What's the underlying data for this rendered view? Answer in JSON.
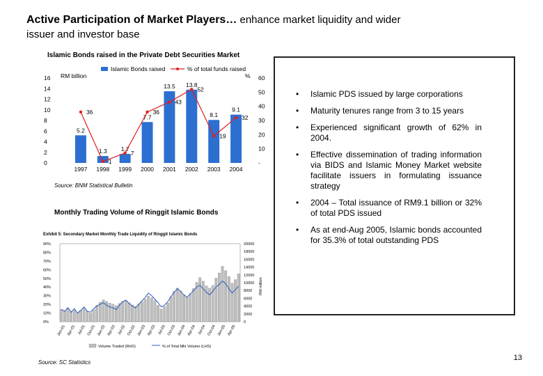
{
  "title": {
    "bold": "Active Participation of Market Players…",
    "normal_line1": " enhance market liquidity and wider",
    "normal_line2": "issuer and investor base"
  },
  "chart_data": [
    {
      "type": "bar",
      "title": "Islamic Bonds raised  in the Private Debt Securities Market",
      "legend": [
        "Islamic Bonds raised",
        "% of total funds raised"
      ],
      "left_axis_label": "RM billion",
      "right_axis_label": "%",
      "categories": [
        "1997",
        "1998",
        "1999",
        "2000",
        "2001",
        "2002",
        "2003",
        "2004"
      ],
      "bar_values": [
        5.2,
        1.3,
        1.7,
        7.7,
        13.5,
        13.8,
        8.1,
        9.1
      ],
      "line_values": [
        36,
        1,
        7,
        36,
        43,
        52,
        19,
        32
      ],
      "bar_labels": [
        "5.2",
        "1.3",
        "1.7",
        "7.7",
        "13.5",
        "13.8",
        "8.1",
        "9.1"
      ],
      "line_labels": [
        "36",
        "1",
        "7",
        "36",
        "43",
        "52",
        "19",
        "32"
      ],
      "left_ticks": [
        "0",
        "2",
        "4",
        "6",
        "8",
        "10",
        "12",
        "14",
        "16"
      ],
      "right_ticks": [
        "-",
        "10",
        "20",
        "30",
        "40",
        "50",
        "60"
      ],
      "left_ylim": [
        0,
        16
      ],
      "right_ylim": [
        0,
        60
      ],
      "colors": {
        "bar": "#2c6fd1",
        "line": "#e02020"
      },
      "source": "Source: BNM Statistical Bulletin"
    },
    {
      "type": "bar",
      "title": "Monthly Trading Volume of Ringgit Islamic Bonds",
      "subtitle": "Exhibit 5: Secondary Market Monthly Trade Liquidity of Ringgit Islamic Bonds",
      "left_ticks": [
        "0%",
        "10%",
        "20%",
        "30%",
        "40%",
        "50%",
        "60%",
        "70%",
        "80%",
        "90%"
      ],
      "right_ticks": [
        "0",
        "2000",
        "4000",
        "6000",
        "8000",
        "10000",
        "12000",
        "14000",
        "16000",
        "18000",
        "20000"
      ],
      "right_axis_label": "RM million",
      "categories": [
        "Jan-01",
        "Apr-01",
        "Jul-01",
        "Oct-01",
        "Jan-02",
        "Apr-02",
        "Jul-02",
        "Oct-02",
        "Jan-03",
        "Apr-03",
        "Jul-03",
        "Oct-03",
        "Jan-04",
        "Apr-04",
        "Jul-04",
        "Oct-04",
        "Jan-05",
        "Apr-05"
      ],
      "legend": [
        "Volume Traded (RHS)",
        "% of Total Mkt Volume (LHS)"
      ],
      "bar_values": [
        3200,
        2800,
        3500,
        2600,
        3000,
        2400,
        2900,
        3600,
        2700,
        2200,
        3100,
        4200,
        5000,
        5600,
        5200,
        4800,
        4500,
        4100,
        4700,
        5200,
        5400,
        4900,
        4300,
        3900,
        4600,
        5100,
        5800,
        6600,
        6100,
        5400,
        4200,
        3300,
        3900,
        4800,
        6400,
        7800,
        8600,
        7900,
        6900,
        6200,
        7200,
        8500,
        10100,
        11300,
        10400,
        9200,
        8600,
        9300,
        11200,
        12500,
        14200,
        13100,
        11600,
        9900,
        10800,
        12300
      ],
      "line_values": [
        14,
        12,
        16,
        11,
        15,
        10,
        13,
        17,
        12,
        11,
        15,
        18,
        20,
        22,
        19,
        17,
        16,
        14,
        19,
        23,
        25,
        21,
        18,
        16,
        20,
        24,
        28,
        33,
        30,
        26,
        22,
        17,
        19,
        23,
        29,
        34,
        38,
        35,
        31,
        28,
        32,
        36,
        40,
        42,
        38,
        34,
        31,
        35,
        40,
        43,
        47,
        44,
        38,
        33,
        37,
        41
      ],
      "colors": {
        "bar": "#bdbdbd",
        "line": "#2a5cc4"
      },
      "source": "Source: SC Statistics"
    }
  ],
  "bullets": [
    "Islamic PDS issued by large corporations",
    "Maturity tenures range from 3 to 15 years",
    "Experienced significant growth of 62% in 2004.",
    "Effective dissemination of trading information via BIDS and Islamic Money Market website facilitate issuers in formulating issuance strategy",
    "2004 – Total issuance of RM9.1 billion or 32% of total PDS issued",
    "As at end-Aug 2005, Islamic bonds accounted for 35.3% of total outstanding PDS"
  ],
  "bullet_symbol": "•",
  "page_number": "13"
}
